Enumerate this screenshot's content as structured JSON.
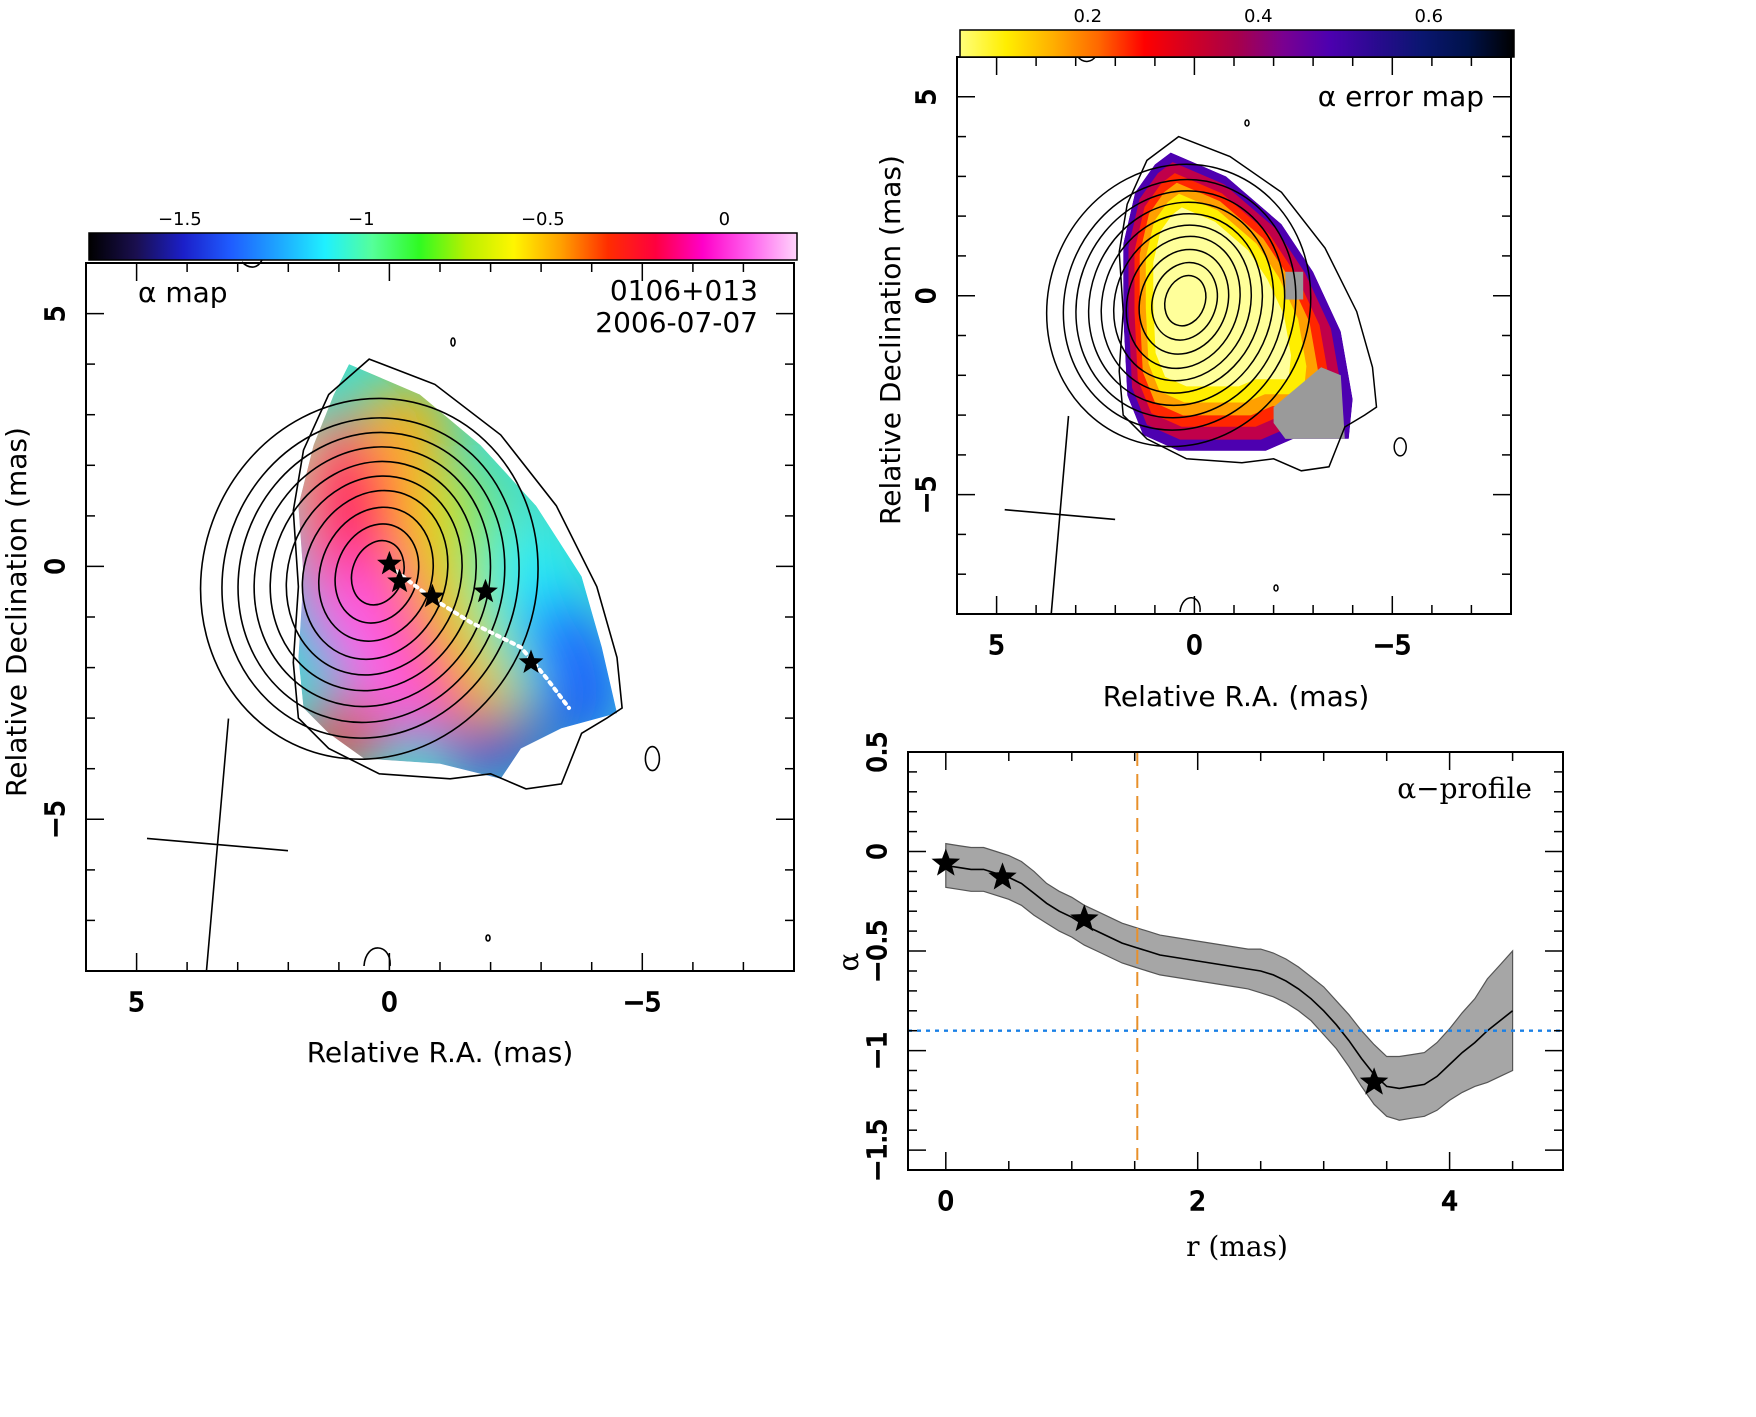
{
  "chart_data": [
    {
      "type": "heatmap",
      "panel_label": "α map",
      "source_name": "0106+013",
      "epoch": "2006-07-07",
      "xlabel": "Relative R.A. (mas)",
      "ylabel": "Relative Declination (mas)",
      "xlim": [
        6.0,
        -8.0
      ],
      "ylim": [
        -8.0,
        6.0
      ],
      "x_ticks": [
        5,
        0,
        -5
      ],
      "x_tick_labels": [
        "5",
        "0",
        "−5"
      ],
      "y_ticks": [
        5,
        0,
        -5
      ],
      "y_tick_labels": [
        "5",
        "0",
        "−5"
      ],
      "colorbar": {
        "range": [
          -1.75,
          0.2
        ],
        "ticks": [
          -1.5,
          -1,
          -0.5,
          0
        ],
        "tick_labels": [
          "−1.5",
          "−1",
          "−0.5",
          "0"
        ],
        "colors": [
          "#000000",
          "#1a0f4f",
          "#1b1fc9",
          "#1f5cff",
          "#1ea5ff",
          "#1ff0ff",
          "#55ff9a",
          "#2ffb22",
          "#b9f000",
          "#fff600",
          "#ffa000",
          "#ff2d00",
          "#ff003f",
          "#ff00c8",
          "#ff62ee",
          "#ffd4fb"
        ]
      },
      "star_markers": [
        {
          "x": 0.0,
          "y": 0.05
        },
        {
          "x": -0.2,
          "y": -0.3
        },
        {
          "x": -0.85,
          "y": -0.6
        },
        {
          "x": -1.9,
          "y": -0.5
        },
        {
          "x": -2.8,
          "y": -1.9
        }
      ],
      "ridge_line": [
        {
          "x": 0.0,
          "y": 0.0
        },
        {
          "x": -0.8,
          "y": -0.6
        },
        {
          "x": -1.6,
          "y": -1.1
        },
        {
          "x": -2.6,
          "y": -1.6
        },
        {
          "x": -3.1,
          "y": -2.2
        },
        {
          "x": -3.55,
          "y": -2.8
        }
      ],
      "beam": {
        "major_mas": 2.5,
        "minor_mas": 1.4,
        "pa_deg": -5,
        "center": [
          3.4,
          -5.5
        ]
      }
    },
    {
      "type": "heatmap",
      "panel_label": "α error map",
      "xlabel": "Relative R.A. (mas)",
      "ylabel": "Relative Declination (mas)",
      "xlim": [
        6.0,
        -8.0
      ],
      "ylim": [
        -8.0,
        6.0
      ],
      "x_ticks": [
        5,
        0,
        -5
      ],
      "x_tick_labels": [
        "5",
        "0",
        "−5"
      ],
      "y_ticks": [
        5,
        0,
        -5
      ],
      "y_tick_labels": [
        "5",
        "0",
        "−5"
      ],
      "colorbar": {
        "range": [
          0.05,
          0.7
        ],
        "ticks": [
          0.2,
          0.4,
          0.6
        ],
        "tick_labels": [
          "0.2",
          "0.4",
          "0.6"
        ],
        "colors": [
          "#ffff7a",
          "#ffee00",
          "#ffb000",
          "#ff6800",
          "#ff0000",
          "#d10024",
          "#a8004a",
          "#7a0090",
          "#4d00b0",
          "#2a0a90",
          "#0a1670",
          "#00124a",
          "#000000"
        ]
      },
      "beam": {
        "major_mas": 2.5,
        "minor_mas": 1.4,
        "pa_deg": -5,
        "center": [
          3.4,
          -5.5
        ]
      }
    },
    {
      "type": "line",
      "panel_label": "α−profile",
      "xlabel": "r (mas)",
      "ylabel": "α",
      "xlim": [
        -0.3,
        4.9
      ],
      "ylim": [
        -1.6,
        0.5
      ],
      "x_ticks": [
        0,
        2,
        4
      ],
      "x_tick_labels": [
        "0",
        "2",
        "4"
      ],
      "y_ticks": [
        0.5,
        0,
        -0.5,
        -1,
        -1.5
      ],
      "y_tick_labels": [
        "0.5",
        "0",
        "−0.5",
        "−1",
        "−1.5"
      ],
      "series": [
        {
          "x": [
            0.0,
            0.1,
            0.2,
            0.3,
            0.4,
            0.5,
            0.6,
            0.7,
            0.8,
            0.9,
            1.0,
            1.1,
            1.2,
            1.3,
            1.4,
            1.5,
            1.6,
            1.7,
            1.8,
            1.9,
            2.0,
            2.1,
            2.2,
            2.3,
            2.4,
            2.5,
            2.6,
            2.7,
            2.8,
            2.9,
            3.0,
            3.1,
            3.2,
            3.3,
            3.4,
            3.5,
            3.6,
            3.7,
            3.8,
            3.9,
            4.0,
            4.1,
            4.2,
            4.3,
            4.4,
            4.5
          ],
          "y": [
            -0.07,
            -0.08,
            -0.09,
            -0.09,
            -0.11,
            -0.13,
            -0.16,
            -0.21,
            -0.26,
            -0.3,
            -0.33,
            -0.37,
            -0.4,
            -0.43,
            -0.46,
            -0.48,
            -0.5,
            -0.52,
            -0.53,
            -0.54,
            -0.55,
            -0.56,
            -0.57,
            -0.58,
            -0.59,
            -0.6,
            -0.62,
            -0.65,
            -0.69,
            -0.74,
            -0.8,
            -0.87,
            -0.95,
            -1.04,
            -1.12,
            -1.18,
            -1.19,
            -1.18,
            -1.17,
            -1.13,
            -1.07,
            -1.01,
            -0.96,
            -0.9,
            -0.85,
            -0.8
          ],
          "err": [
            0.11,
            0.11,
            0.11,
            0.11,
            0.11,
            0.11,
            0.11,
            0.11,
            0.1,
            0.1,
            0.1,
            0.1,
            0.1,
            0.1,
            0.1,
            0.1,
            0.1,
            0.1,
            0.1,
            0.1,
            0.1,
            0.1,
            0.1,
            0.1,
            0.1,
            0.11,
            0.11,
            0.11,
            0.11,
            0.11,
            0.12,
            0.12,
            0.13,
            0.14,
            0.15,
            0.15,
            0.16,
            0.16,
            0.16,
            0.17,
            0.18,
            0.2,
            0.22,
            0.26,
            0.28,
            0.3
          ]
        }
      ],
      "star_markers": [
        {
          "x": 0.0,
          "y": -0.06
        },
        {
          "x": 0.45,
          "y": -0.13
        },
        {
          "x": 1.1,
          "y": -0.34
        },
        {
          "x": 3.4,
          "y": -1.16
        }
      ],
      "vertical_dashed_line": {
        "x": 1.52,
        "color": "#e8902a"
      },
      "horizontal_dotted_line": {
        "y": -0.9,
        "color": "#1a80e6"
      }
    }
  ]
}
